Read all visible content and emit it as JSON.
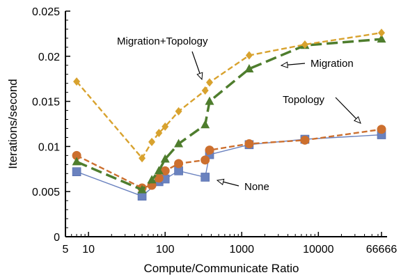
{
  "chart_data": {
    "type": "line",
    "title": "",
    "xlabel": "Compute/Communicate Ratio",
    "ylabel": "Iterations/second",
    "x_scale": "log",
    "xlim": [
      5,
      66666
    ],
    "ylim": [
      0,
      0.025
    ],
    "grid": false,
    "x_tick_values": [
      5,
      10,
      100,
      1000,
      10000,
      66666
    ],
    "x_tick_labels": [
      "5",
      "10",
      "100",
      "1000",
      "10000",
      "66666"
    ],
    "y_tick_values": [
      0,
      0.005,
      0.01,
      0.015,
      0.02,
      0.025
    ],
    "y_tick_labels": [
      "0",
      "0.005",
      "0.01",
      "0.015",
      "0.02",
      "0.025"
    ],
    "series": [
      {
        "name": "None",
        "color": "#6a82bf",
        "marker": "square",
        "dash": "solid",
        "points": [
          [
            7,
            0.0072
          ],
          [
            50,
            0.0045
          ],
          [
            83,
            0.0061
          ],
          [
            100,
            0.0064
          ],
          [
            150,
            0.0073
          ],
          [
            333,
            0.0066
          ],
          [
            380,
            0.0091
          ],
          [
            1250,
            0.0102
          ],
          [
            6666,
            0.0108
          ],
          [
            66666,
            0.0113
          ]
        ]
      },
      {
        "name": "Topology",
        "color": "#cc6f2e",
        "marker": "circle",
        "dash": "dashed",
        "points": [
          [
            7,
            0.009
          ],
          [
            50,
            0.0054
          ],
          [
            67,
            0.0057
          ],
          [
            83,
            0.0065
          ],
          [
            100,
            0.0073
          ],
          [
            150,
            0.0081
          ],
          [
            333,
            0.0085
          ],
          [
            380,
            0.0096
          ],
          [
            1250,
            0.0103
          ],
          [
            6666,
            0.0107
          ],
          [
            66666,
            0.0119
          ]
        ]
      },
      {
        "name": "Migration",
        "color": "#4e7d2d",
        "marker": "triangle",
        "dash": "longdash",
        "points": [
          [
            7,
            0.0083
          ],
          [
            50,
            0.0052
          ],
          [
            67,
            0.0063
          ],
          [
            83,
            0.0073
          ],
          [
            100,
            0.0086
          ],
          [
            150,
            0.0103
          ],
          [
            333,
            0.0124
          ],
          [
            380,
            0.015
          ],
          [
            1250,
            0.0186
          ],
          [
            6666,
            0.0212
          ],
          [
            66666,
            0.0219
          ]
        ]
      },
      {
        "name": "Migration+Topology",
        "color": "#d8a22e",
        "marker": "diamond",
        "dash": "dashed",
        "points": [
          [
            7,
            0.0172
          ],
          [
            50,
            0.0087
          ],
          [
            67,
            0.0105
          ],
          [
            83,
            0.0115
          ],
          [
            100,
            0.0122
          ],
          [
            150,
            0.0139
          ],
          [
            333,
            0.0162
          ],
          [
            380,
            0.0171
          ],
          [
            1250,
            0.0201
          ],
          [
            6666,
            0.0213
          ],
          [
            66666,
            0.0226
          ]
        ]
      }
    ],
    "annotations": [
      {
        "text": "Migration+Topology",
        "series": "Migration+Topology"
      },
      {
        "text": "Migration",
        "series": "Migration"
      },
      {
        "text": "Topology",
        "series": "Topology"
      },
      {
        "text": "None",
        "series": "None"
      }
    ]
  }
}
